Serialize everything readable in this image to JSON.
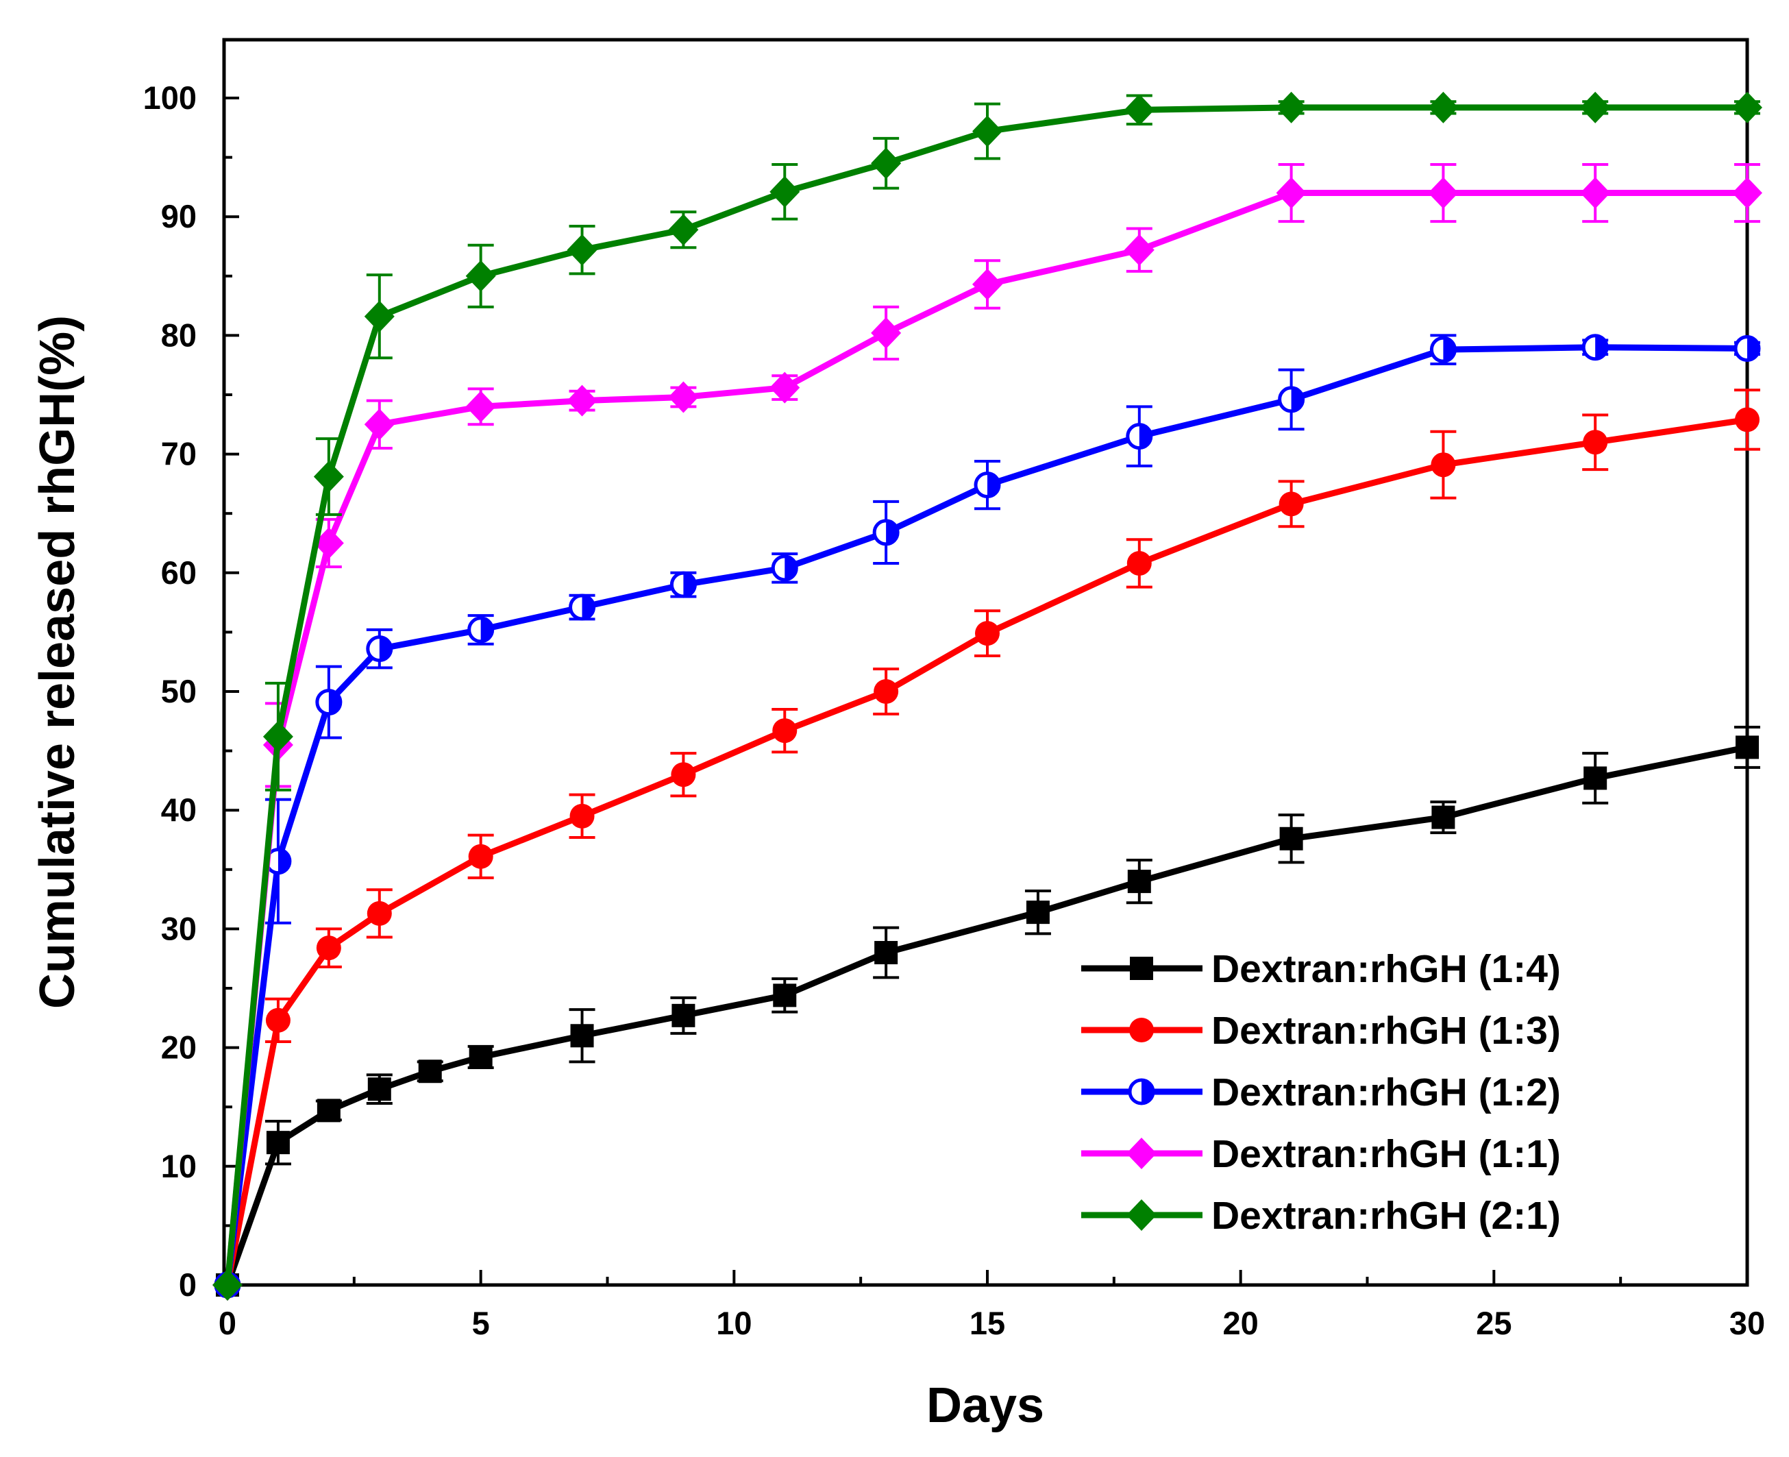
{
  "chart_data": {
    "type": "line",
    "title": "",
    "xlabel": "Days",
    "ylabel": "Cumulative released rhGH(%)",
    "xlim": [
      0,
      30
    ],
    "ylim": [
      0,
      105
    ],
    "xticks": [
      0,
      5,
      10,
      15,
      20,
      25,
      30
    ],
    "yticks": [
      0,
      10,
      20,
      30,
      40,
      50,
      60,
      70,
      80,
      90,
      100
    ],
    "legend_position": "bottom-right",
    "grid": false,
    "series": [
      {
        "name": "Dextran:rhGH (1:4)",
        "color": "#000000",
        "marker": "square",
        "x": [
          0,
          1,
          2,
          3,
          4,
          5,
          7,
          9,
          11,
          13,
          16,
          18,
          21,
          24,
          27,
          30
        ],
        "values": [
          0,
          12,
          14.7,
          16.5,
          18,
          19.2,
          21,
          22.7,
          24.4,
          28,
          31.4,
          34,
          37.6,
          39.4,
          42.7,
          45.3
        ],
        "errors": [
          0,
          1.8,
          0.8,
          1.2,
          0.8,
          0.9,
          2.2,
          1.5,
          1.4,
          2.1,
          1.8,
          1.8,
          2.0,
          1.3,
          2.1,
          1.7
        ]
      },
      {
        "name": "Dextran:rhGH (1:3)",
        "color": "#ff0000",
        "marker": "circle",
        "x": [
          0,
          1,
          2,
          3,
          5,
          7,
          9,
          11,
          13,
          15,
          18,
          21,
          24,
          27,
          30
        ],
        "values": [
          0,
          22.3,
          28.4,
          31.3,
          36.1,
          39.5,
          43,
          46.7,
          50,
          54.9,
          60.8,
          65.8,
          69.1,
          71,
          72.9
        ],
        "errors": [
          0,
          1.8,
          1.6,
          2.0,
          1.8,
          1.8,
          1.8,
          1.8,
          1.9,
          1.9,
          2.0,
          1.9,
          2.8,
          2.3,
          2.5
        ]
      },
      {
        "name": "Dextran:rhGH (1:2)",
        "color": "#0000ff",
        "marker": "half-circle",
        "x": [
          0,
          1,
          2,
          3,
          5,
          7,
          9,
          11,
          13,
          15,
          18,
          21,
          24,
          27,
          30
        ],
        "values": [
          0,
          35.7,
          49.1,
          53.6,
          55.2,
          57.1,
          59,
          60.4,
          63.4,
          67.4,
          71.5,
          74.6,
          78.8,
          79,
          78.9
        ],
        "errors": [
          0,
          5.2,
          3.0,
          1.6,
          1.2,
          1.0,
          1.0,
          1.2,
          2.6,
          2.0,
          2.5,
          2.5,
          1.2,
          0.6,
          0.5
        ]
      },
      {
        "name": "Dextran:rhGH (1:1)",
        "color": "#ff00ff",
        "marker": "diamond",
        "x": [
          0,
          1,
          2,
          3,
          5,
          7,
          9,
          11,
          13,
          15,
          18,
          21,
          24,
          27,
          30
        ],
        "values": [
          0,
          45.5,
          62.5,
          72.5,
          74,
          74.5,
          74.8,
          75.6,
          80.2,
          84.3,
          87.2,
          92,
          92,
          92,
          92
        ],
        "errors": [
          0,
          3.5,
          2.0,
          2.0,
          1.5,
          0.8,
          0.8,
          1.0,
          2.2,
          2.0,
          1.8,
          2.4,
          2.4,
          2.4,
          2.4
        ]
      },
      {
        "name": "Dextran:rhGH (2:1)",
        "color": "#008000",
        "marker": "diamond",
        "x": [
          0,
          1,
          2,
          3,
          5,
          7,
          9,
          11,
          13,
          15,
          18,
          21,
          24,
          27,
          30
        ],
        "values": [
          0,
          46.2,
          68.1,
          81.6,
          85,
          87.2,
          88.9,
          92.1,
          94.5,
          97.2,
          99,
          99.2,
          99.2,
          99.2,
          99.2
        ],
        "errors": [
          0,
          4.5,
          3.2,
          3.5,
          2.6,
          2.0,
          1.5,
          2.3,
          2.1,
          2.3,
          1.2,
          0.5,
          0.5,
          0.5,
          0.5
        ]
      }
    ]
  }
}
